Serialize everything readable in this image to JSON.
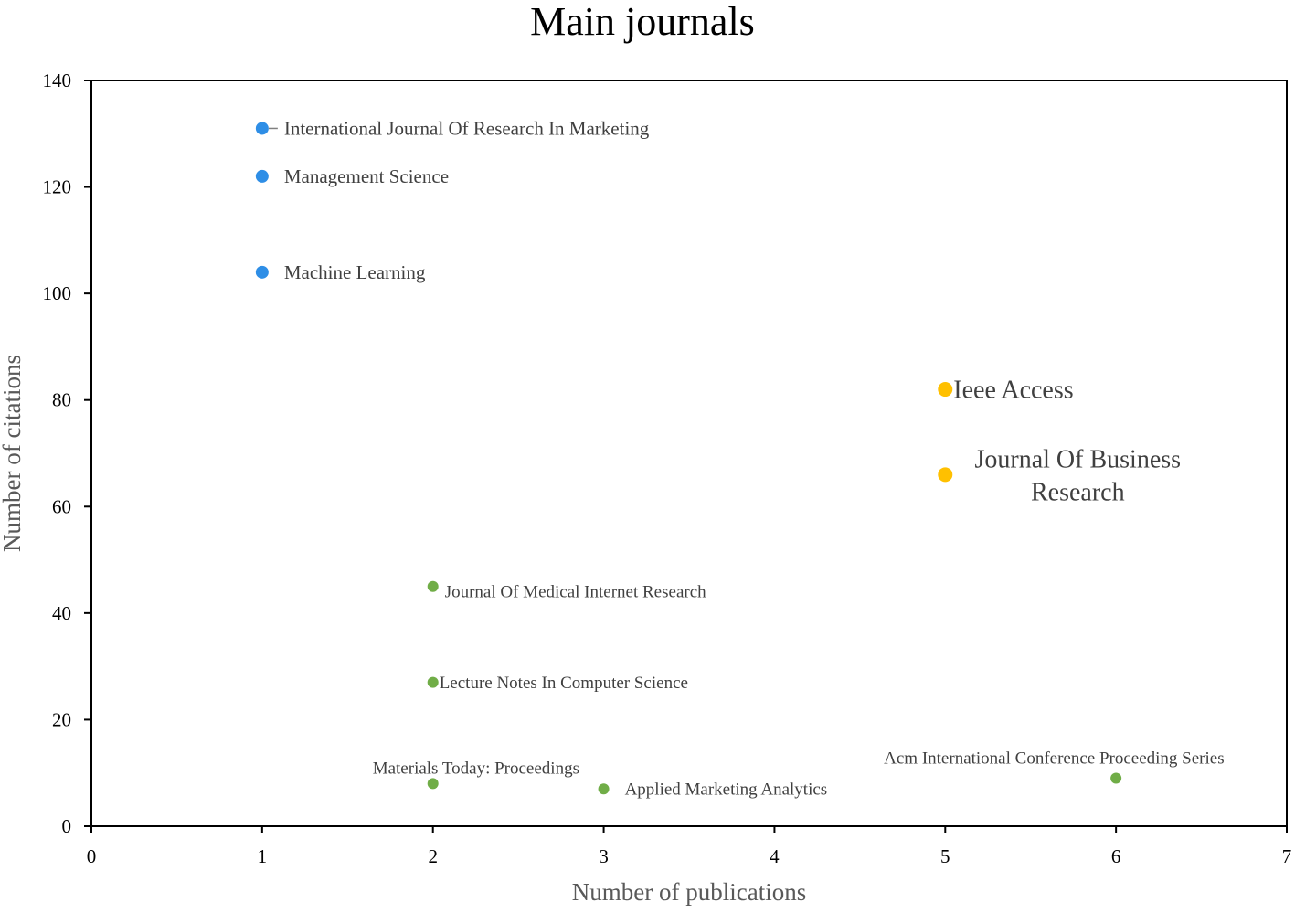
{
  "chart_data": {
    "type": "scatter",
    "title": "Main journals",
    "xlabel": "Number of publications",
    "ylabel": "Number of citations",
    "xlim": [
      0,
      7
    ],
    "ylim": [
      0,
      140
    ],
    "xticks": [
      "0",
      "1",
      "2",
      "3",
      "4",
      "5",
      "6",
      "7"
    ],
    "yticks": [
      "0",
      "20",
      "40",
      "60",
      "80",
      "100",
      "120",
      "140"
    ],
    "grid": false,
    "legend": "none",
    "colors": {
      "blue": "#2e8ee6",
      "yellow": "#ffc000",
      "green": "#70ad47"
    },
    "points": [
      {
        "label": "International Journal Of Research In Marketing",
        "x": 1,
        "y": 131,
        "color": "blue",
        "size": "medium",
        "label_pos": "right",
        "leader": true
      },
      {
        "label": "Management Science",
        "x": 1,
        "y": 122,
        "color": "blue",
        "size": "medium",
        "label_pos": "right"
      },
      {
        "label": "Machine Learning",
        "x": 1,
        "y": 104,
        "color": "blue",
        "size": "medium",
        "label_pos": "right"
      },
      {
        "label": "Ieee Access",
        "x": 5,
        "y": 82,
        "color": "yellow",
        "size": "large",
        "label_pos": "right-tight"
      },
      {
        "label": "Journal Of Business Research",
        "lines": [
          "Journal Of Business",
          "Research"
        ],
        "x": 5,
        "y": 66,
        "color": "yellow",
        "size": "large",
        "label_pos": "above-right"
      },
      {
        "label": "Journal Of Medical Internet Research",
        "x": 2,
        "y": 45,
        "color": "green",
        "size": "small",
        "label_pos": "right-below"
      },
      {
        "label": "Lecture Notes In Computer Science",
        "x": 2,
        "y": 27,
        "color": "green",
        "size": "small",
        "label_pos": "right-tight"
      },
      {
        "label": "Materials Today: Proceedings",
        "x": 2,
        "y": 8,
        "color": "green",
        "size": "small",
        "label_pos": "above"
      },
      {
        "label": "Applied Marketing Analytics",
        "x": 3,
        "y": 7,
        "color": "green",
        "size": "small",
        "label_pos": "right"
      },
      {
        "label": "Acm International Conference Proceeding Series",
        "x": 6,
        "y": 9,
        "color": "green",
        "size": "small",
        "label_pos": "above-left"
      }
    ]
  }
}
